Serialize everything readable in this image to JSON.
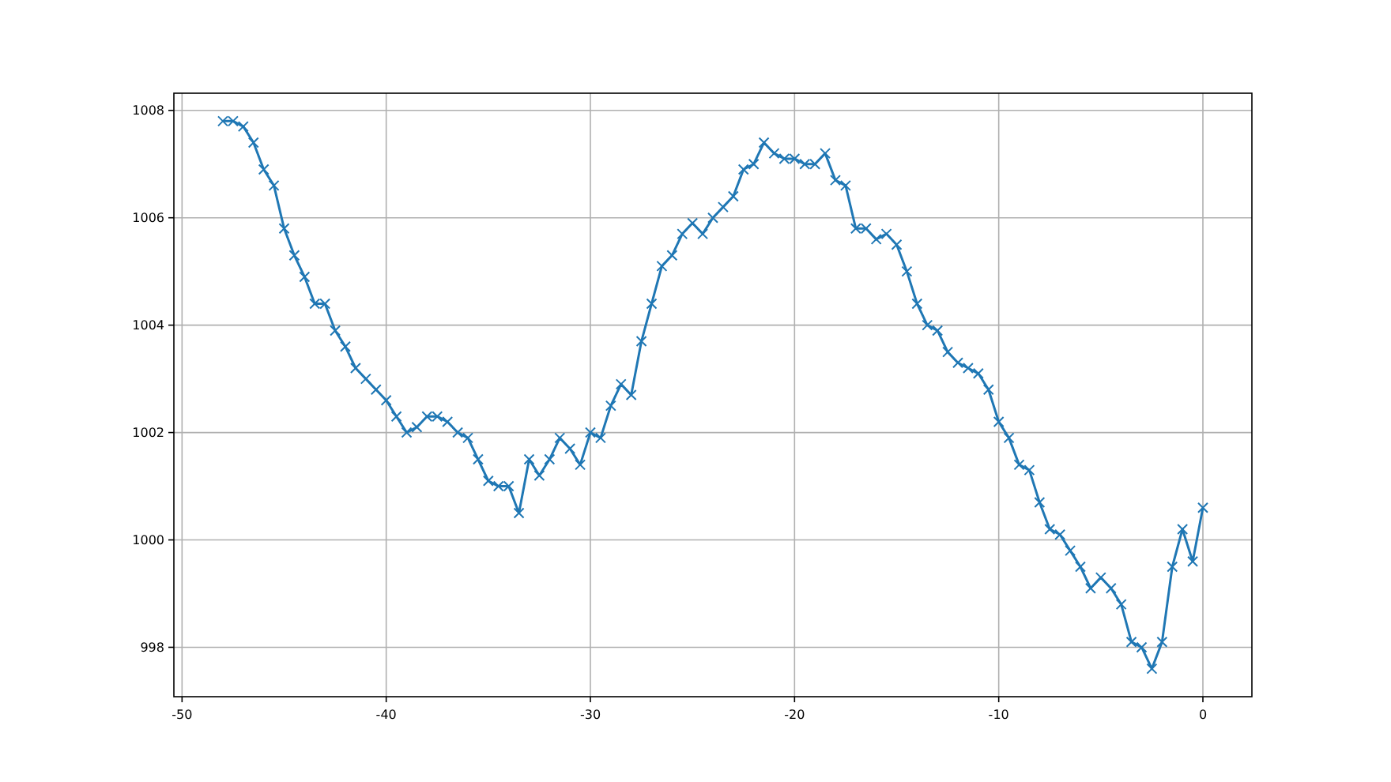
{
  "chart_data": {
    "type": "line",
    "x": [
      -48,
      -47.5,
      -47,
      -46.5,
      -46,
      -45.5,
      -45,
      -44.5,
      -44,
      -43.5,
      -43,
      -42.5,
      -42,
      -41.5,
      -41,
      -40.5,
      -40,
      -39.5,
      -39,
      -38.5,
      -38,
      -37.5,
      -37,
      -36.5,
      -36,
      -35.5,
      -35,
      -34.5,
      -34,
      -33.5,
      -33,
      -32.5,
      -32,
      -31.5,
      -31,
      -30.5,
      -30,
      -29.5,
      -29,
      -28.5,
      -28,
      -27.5,
      -27,
      -26.5,
      -26,
      -25.5,
      -25,
      -24.5,
      -24,
      -23.5,
      -23,
      -22.5,
      -22,
      -21.5,
      -21,
      -20.5,
      -20,
      -19.5,
      -19,
      -18.5,
      -18,
      -17.5,
      -17,
      -16.5,
      -16,
      -15.5,
      -15,
      -14.5,
      -14,
      -13.5,
      -13,
      -12.5,
      -12,
      -11.5,
      -11,
      -10.5,
      -10,
      -9.5,
      -9,
      -8.5,
      -8,
      -7.5,
      -7,
      -6.5,
      -6,
      -5.5,
      -5,
      -4.5,
      -4,
      -3.5,
      -3,
      -2.5,
      -2,
      -1.5,
      -1,
      -0.5,
      0
    ],
    "series": [
      {
        "color": "#1f77b4",
        "values": [
          1007.8,
          1007.8,
          1007.7,
          1007.4,
          1006.9,
          1006.6,
          1005.8,
          1005.3,
          1004.9,
          1004.4,
          1004.4,
          1003.9,
          1003.6,
          1003.2,
          1003.0,
          1002.8,
          1002.6,
          1002.3,
          1002.0,
          1002.1,
          1002.3,
          1002.3,
          1002.2,
          1002.0,
          1001.9,
          1001.5,
          1001.1,
          1001.0,
          1001.0,
          1000.5,
          1001.5,
          1001.2,
          1001.5,
          1001.9,
          1001.7,
          1001.4,
          1002.0,
          1001.9,
          1002.5,
          1002.9,
          1002.7,
          1003.7,
          1004.4,
          1005.1,
          1005.3,
          1005.7,
          1005.9,
          1005.7,
          1006.0,
          1006.2,
          1006.4,
          1006.9,
          1007.0,
          1007.4,
          1007.2,
          1007.1,
          1007.1,
          1007.0,
          1007.0,
          1007.2,
          1006.7,
          1006.6,
          1005.8,
          1005.8,
          1005.6,
          1005.7,
          1005.5,
          1005.0,
          1004.4,
          1004.0,
          1003.9,
          1003.5,
          1003.3,
          1003.2,
          1003.1,
          1002.8,
          1002.2,
          1001.9,
          1001.4,
          1001.3,
          1000.7,
          1000.2,
          1000.1,
          999.8,
          999.5,
          999.1,
          999.3,
          999.1,
          998.8,
          998.1,
          998.0,
          997.6,
          998.1,
          999.5,
          1000.2,
          999.6,
          1000.6
        ]
      }
    ],
    "xlim": [
      -50.4,
      2.4
    ],
    "ylim": [
      997.08,
      1008.32
    ],
    "xticks": [
      -50,
      -40,
      -30,
      -20,
      -10,
      0
    ],
    "yticks": [
      998,
      1000,
      1002,
      1004,
      1006,
      1008
    ],
    "grid": true,
    "marker": "cross",
    "line_style": "solid"
  }
}
